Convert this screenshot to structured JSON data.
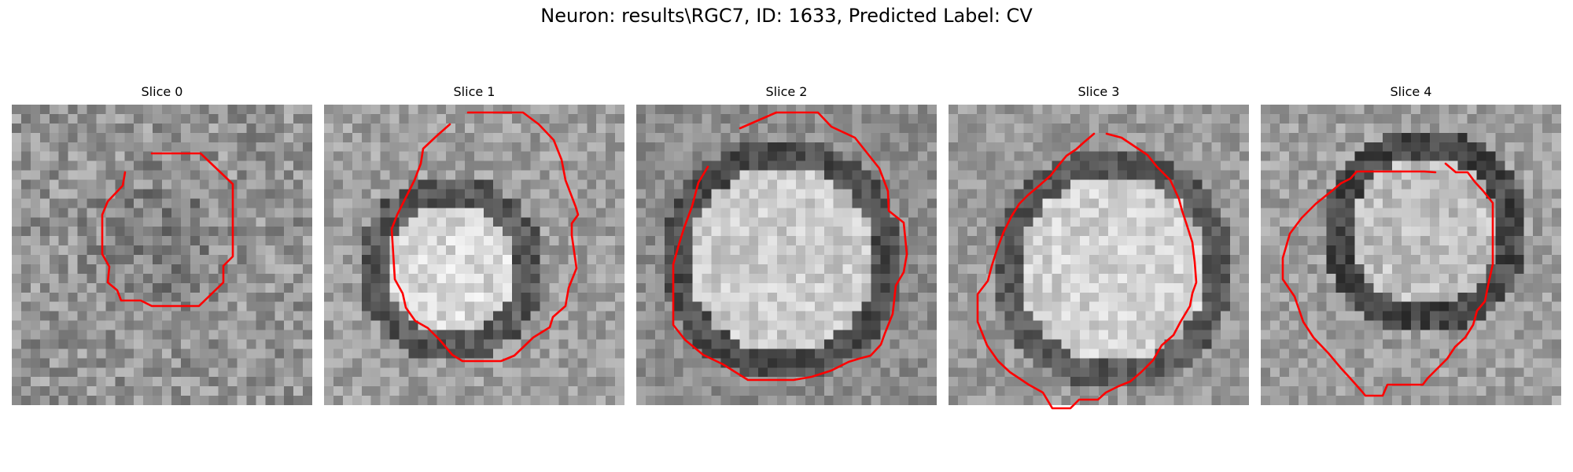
{
  "figure": {
    "title": "Neuron: results\\RGC7, ID: 1633, Predicted Label: CV",
    "contour_color": "#ff0000"
  },
  "slices": [
    {
      "title": "Slice 0"
    },
    {
      "title": "Slice 1"
    },
    {
      "title": "Slice 2"
    },
    {
      "title": "Slice 3"
    },
    {
      "title": "Slice 4"
    }
  ]
}
